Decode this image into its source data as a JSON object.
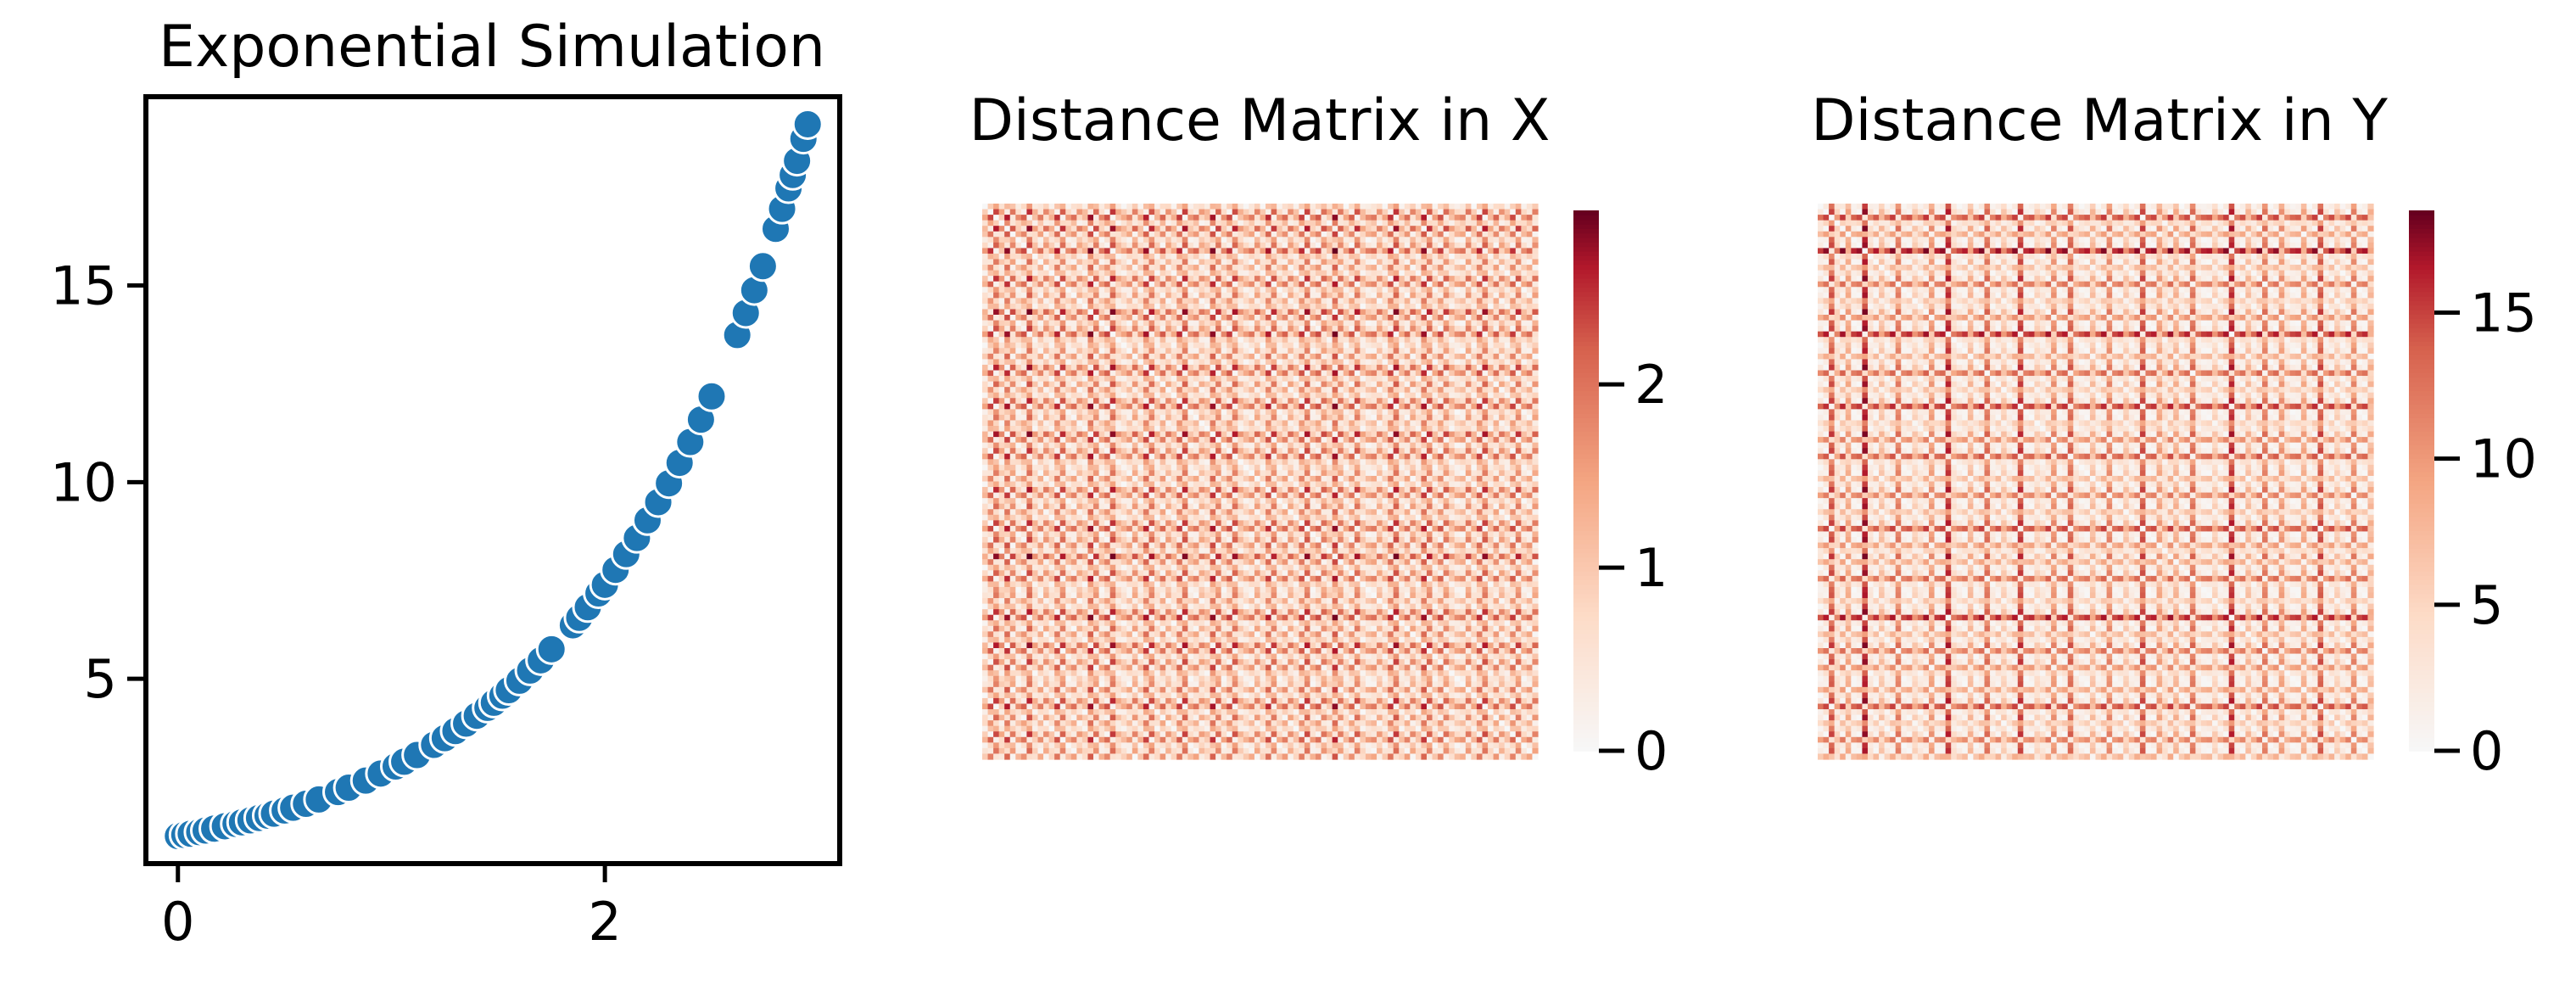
{
  "chart_data": [
    {
      "type": "scatter",
      "title": "Exponential Simulation",
      "xlabel": "",
      "ylabel": "",
      "xlim": [
        -0.15,
        3.1
      ],
      "ylim": [
        0.3,
        19.8
      ],
      "xticks": [
        0,
        2
      ],
      "xtick_labels": [
        "0",
        "2"
      ],
      "yticks": [
        5,
        10,
        15
      ],
      "ytick_labels": [
        "5",
        "10",
        "15"
      ],
      "grid": false,
      "legend": "none",
      "marker_color": "#1f77b4",
      "x": [
        0.0,
        0.03,
        0.06,
        0.1,
        0.13,
        0.17,
        0.22,
        0.27,
        0.3,
        0.34,
        0.38,
        0.42,
        0.45,
        0.5,
        0.54,
        0.6,
        0.66,
        0.75,
        0.8,
        0.88,
        0.95,
        1.02,
        1.06,
        1.12,
        1.2,
        1.25,
        1.3,
        1.35,
        1.4,
        1.45,
        1.48,
        1.52,
        1.55,
        1.6,
        1.65,
        1.7,
        1.75,
        1.85,
        1.88,
        1.92,
        1.97,
        2.0,
        2.05,
        2.1,
        2.15,
        2.2,
        2.25,
        2.3,
        2.35,
        2.4,
        2.45,
        2.5,
        2.62,
        2.66,
        2.7,
        2.74,
        2.8,
        2.83,
        2.86,
        2.88,
        2.9,
        2.93,
        2.95
      ],
      "y": [
        1.0,
        1.03,
        1.06,
        1.1,
        1.14,
        1.19,
        1.25,
        1.31,
        1.35,
        1.4,
        1.46,
        1.52,
        1.57,
        1.65,
        1.72,
        1.82,
        1.93,
        2.12,
        2.23,
        2.41,
        2.59,
        2.77,
        2.89,
        3.06,
        3.32,
        3.49,
        3.67,
        3.86,
        4.06,
        4.26,
        4.39,
        4.57,
        4.71,
        4.95,
        5.21,
        5.47,
        5.75,
        6.36,
        6.55,
        6.82,
        7.17,
        7.39,
        7.77,
        8.17,
        8.58,
        9.03,
        9.49,
        9.97,
        10.49,
        11.02,
        11.59,
        12.18,
        13.74,
        14.3,
        14.88,
        15.49,
        16.44,
        16.95,
        17.47,
        17.81,
        18.17,
        18.73,
        19.1
      ]
    },
    {
      "type": "heatmap",
      "title": "Distance Matrix in X",
      "xlabel": "",
      "ylabel": "",
      "colormap": "RdBu_r (upper half)",
      "color_low": "#f7f7f7",
      "color_high": "#67001f",
      "vmin": 0,
      "vmax": 2.95,
      "colorbar_ticks": [
        0,
        1,
        2
      ],
      "colorbar_tick_labels": [
        "0",
        "1",
        "2"
      ],
      "n": 100,
      "rule": "z[i][j] = |x[i] - x[j]|",
      "values": [
        1.35,
        0.42,
        2.81,
        1.9,
        0.15,
        2.4,
        1.05,
        0.6,
        2.95,
        1.7,
        0.88,
        2.2,
        1.5,
        0.3,
        2.65,
        1.2,
        0.75,
        2.05,
        1.6,
        0.05,
        2.5,
        1.0,
        0.5,
        2.9,
        1.8,
        1.4,
        0.95,
        2.3,
        1.25,
        0.2,
        2.7,
        1.55,
        0.65,
        2.1,
        1.45,
        0.35,
        2.85,
        1.15,
        0.8,
        2.0,
        1.65,
        0.1,
        2.55,
        1.1,
        0.45,
        2.75,
        1.75,
        1.3,
        0.9,
        2.25,
        1.4,
        0.25,
        2.6,
        1.2,
        0.7,
        2.15,
        1.5,
        0.4,
        2.8,
        1.0,
        0.55,
        2.45,
        1.85,
        0.0,
        2.35,
        1.35,
        0.6,
        2.7,
        1.6,
        1.05,
        0.85,
        2.05,
        1.3,
        0.3,
        2.9,
        1.45,
        0.75,
        2.25,
        1.55,
        0.15,
        2.65,
        1.25,
        0.5,
        2.5,
        1.7,
        1.15,
        0.95,
        2.4,
        1.35,
        0.35,
        2.8,
        1.6,
        0.65,
        2.1,
        1.5,
        0.45,
        2.6,
        1.2,
        0.8,
        2.3
      ]
    },
    {
      "type": "heatmap",
      "title": "Distance Matrix in Y",
      "xlabel": "",
      "ylabel": "",
      "colormap": "RdBu_r (upper half)",
      "color_low": "#f7f7f7",
      "color_high": "#67001f",
      "vmin": 0,
      "vmax": 18.5,
      "colorbar_ticks": [
        0,
        5,
        10,
        15
      ],
      "colorbar_tick_labels": [
        "0",
        "5",
        "10",
        "15"
      ],
      "n": 100,
      "rule": "z[i][j] = |exp(x[i]) - exp(x[j])|, x = Distance Matrix in X values"
    }
  ]
}
